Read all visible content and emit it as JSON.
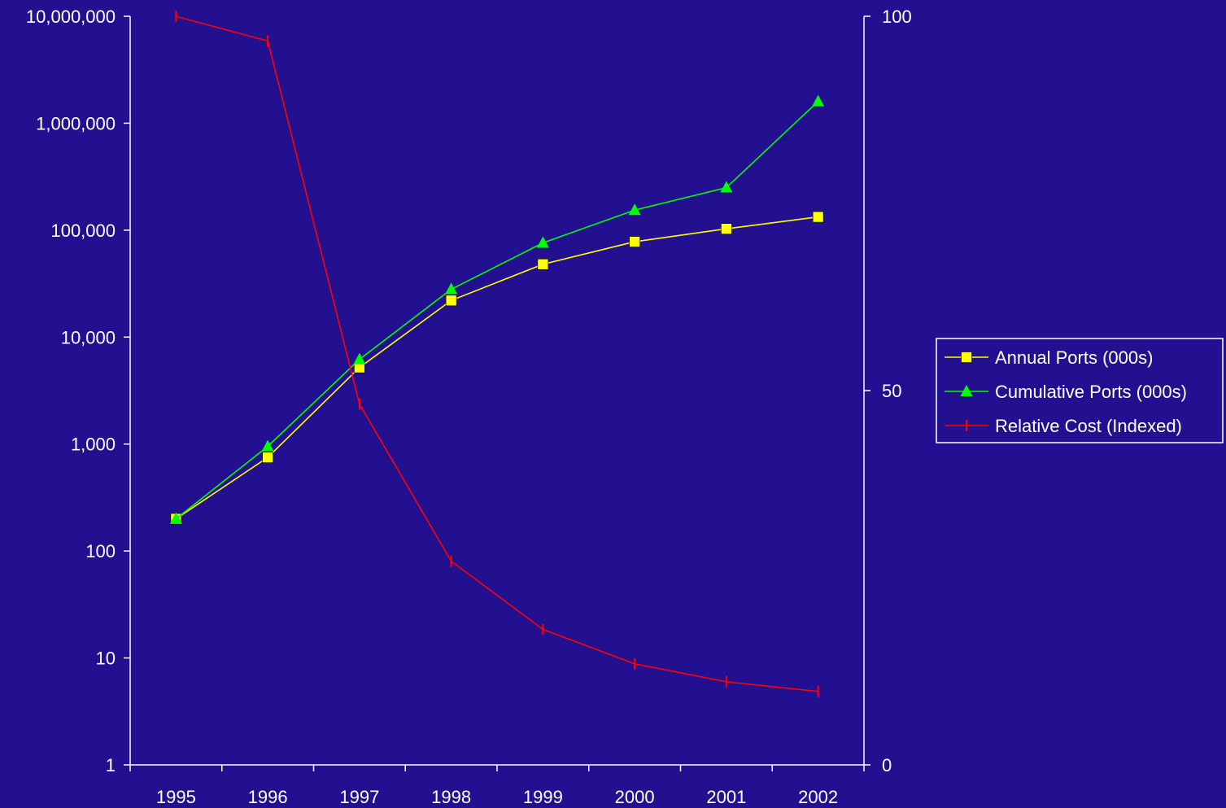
{
  "chart_data": {
    "type": "line",
    "categories": [
      "1995",
      "1996",
      "1997",
      "1998",
      "1999",
      "2000",
      "2001",
      "2002"
    ],
    "y_left": {
      "scale": "log",
      "range": [
        1,
        10000000
      ],
      "tick_values": [
        1,
        10,
        100,
        1000,
        10000,
        100000,
        1000000,
        10000000
      ],
      "tick_labels": [
        "1",
        "10",
        "100",
        "1,000",
        "10,000",
        "100,000",
        "1,000,000",
        "10,000,000"
      ]
    },
    "y_right": {
      "scale": "linear",
      "range": [
        0,
        100
      ],
      "tick_values": [
        0,
        50,
        100
      ],
      "tick_labels": [
        "0",
        "50",
        "100"
      ]
    },
    "series": [
      {
        "name": "Annual Ports (000s)",
        "axis": "left",
        "color": "#ffff00",
        "marker": "square",
        "values": [
          200,
          750,
          5200,
          22000,
          48000,
          78000,
          103000,
          133000
        ]
      },
      {
        "name": "Cumulative Ports (000s)",
        "axis": "left",
        "color": "#00ff00",
        "marker": "triangle",
        "values": [
          200,
          950,
          6200,
          28000,
          76000,
          154000,
          250000,
          1600000
        ]
      },
      {
        "name": "Relative Cost (Indexed)",
        "axis": "right",
        "color": "#ff0000",
        "marker": "dash",
        "values": [
          100,
          96.7,
          48.2,
          27.2,
          18.1,
          13.5,
          11.1,
          9.8
        ]
      }
    ],
    "legend_position": "right",
    "grid": false
  },
  "colors": {
    "background": "#221090",
    "axis": "#ffffff",
    "legend_border": "#ffffff"
  }
}
